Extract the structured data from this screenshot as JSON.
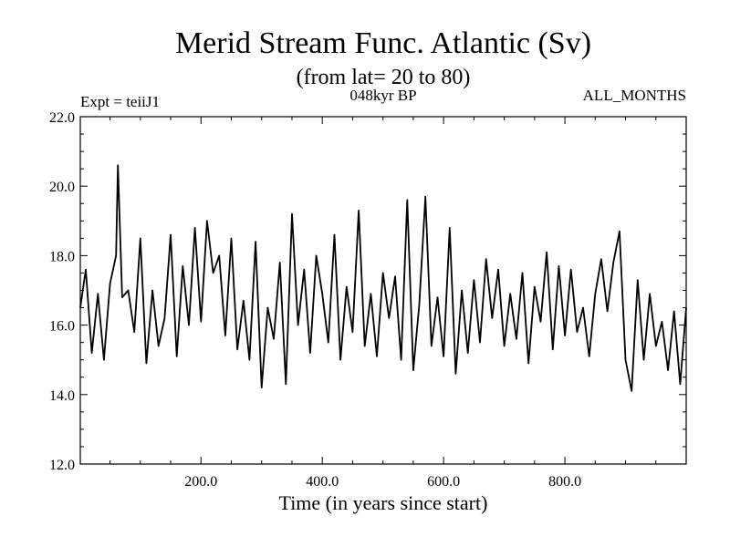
{
  "chart_data": {
    "type": "line",
    "title": "Merid Stream Func. Atlantic (Sv)",
    "subtitle": "(from lat= 20 to 80)",
    "annotations": {
      "left": "Expt = teiiJ1",
      "center": "048kyr BP",
      "right": "ALL_MONTHS"
    },
    "xlabel": "Time (in years since start)",
    "ylabel": "",
    "xlim": [
      1,
      1000
    ],
    "ylim": [
      12.0,
      22.0
    ],
    "xticks": [
      200,
      400,
      600,
      800
    ],
    "xtick_labels": [
      "200.0",
      "400.0",
      "600.0",
      "800.0"
    ],
    "yticks": [
      12,
      14,
      16,
      18,
      20,
      22
    ],
    "ytick_labels": [
      "12.0",
      "14.0",
      "16.0",
      "18.0",
      "20.0",
      "22.0"
    ],
    "grid": false,
    "series": [
      {
        "color": "#000000",
        "x": [
          1,
          10,
          20,
          30,
          40,
          50,
          60,
          63,
          70,
          80,
          90,
          100,
          110,
          120,
          130,
          140,
          150,
          160,
          170,
          180,
          190,
          200,
          210,
          220,
          230,
          240,
          250,
          260,
          270,
          280,
          290,
          300,
          310,
          320,
          330,
          340,
          350,
          360,
          370,
          380,
          390,
          400,
          410,
          420,
          430,
          440,
          450,
          460,
          470,
          480,
          490,
          500,
          510,
          520,
          530,
          540,
          550,
          560,
          570,
          580,
          590,
          600,
          610,
          620,
          630,
          640,
          650,
          660,
          670,
          680,
          690,
          700,
          710,
          720,
          730,
          740,
          750,
          760,
          770,
          780,
          790,
          800,
          810,
          820,
          830,
          840,
          850,
          860,
          870,
          880,
          890,
          900,
          910,
          920,
          930,
          940,
          950,
          960,
          970,
          980,
          990,
          1000
        ],
        "y": [
          16.5,
          17.6,
          15.2,
          16.9,
          15.0,
          17.2,
          18.0,
          20.6,
          16.8,
          17.0,
          15.8,
          18.5,
          14.9,
          17.0,
          15.4,
          16.2,
          18.6,
          15.1,
          17.7,
          16.0,
          18.8,
          16.1,
          19.0,
          17.5,
          18.0,
          15.7,
          18.5,
          15.3,
          16.7,
          15.0,
          18.4,
          14.2,
          16.5,
          15.6,
          17.8,
          14.3,
          19.2,
          16.0,
          17.6,
          15.2,
          18.0,
          16.9,
          15.5,
          18.6,
          15.0,
          17.1,
          15.8,
          19.3,
          15.4,
          16.9,
          15.1,
          17.5,
          16.2,
          17.4,
          15.0,
          19.6,
          14.7,
          16.6,
          19.7,
          15.4,
          16.8,
          15.1,
          18.8,
          14.6,
          17.0,
          15.2,
          17.3,
          15.5,
          17.9,
          16.2,
          17.6,
          15.4,
          16.9,
          15.6,
          17.5,
          14.9,
          17.1,
          16.1,
          18.1,
          15.3,
          17.7,
          15.7,
          17.6,
          15.8,
          16.5,
          15.1,
          16.9,
          17.9,
          16.4,
          17.8,
          18.7,
          15.0,
          14.1,
          17.3,
          15.0,
          16.9,
          15.4,
          16.1,
          14.7,
          16.4,
          14.3,
          16.5
        ]
      }
    ]
  }
}
